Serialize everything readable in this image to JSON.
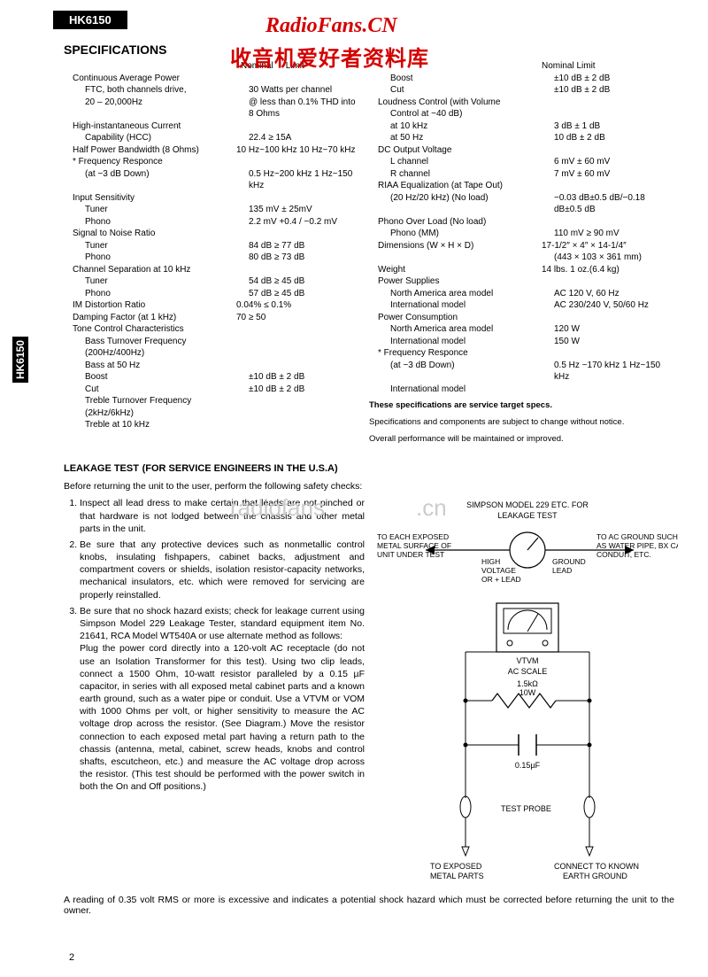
{
  "model": "HK6150",
  "side_model": "HK6150",
  "watermark": {
    "title": "RadioFans.CN",
    "subtitle": "收音机爱好者资料库"
  },
  "faint_watermarks": [
    "radiofans",
    ".cn"
  ],
  "section_specs": "SPECIFICATIONS",
  "spec_header": {
    "nom": "Nominal",
    "lim": "Limit"
  },
  "left_specs": [
    {
      "label": "Continuous Average Power",
      "val": ""
    },
    {
      "label": "FTC, both channels drive,",
      "val": "30 Watts per channel",
      "ind": true
    },
    {
      "label": "20 – 20,000Hz",
      "val": "@ less than 0.1% THD into",
      "ind": true
    },
    {
      "label": "",
      "val": "8 Ohms",
      "ind": true
    },
    {
      "label": "High-instantaneous Current",
      "val": ""
    },
    {
      "label": "Capability (HCC)",
      "val": "22.4 ≥ 15A",
      "ind": true
    },
    {
      "label": "Half Power Bandwidth (8 Ohms)",
      "val": "10 Hz~100 kHz 10 Hz~70 kHz"
    },
    {
      "label": "* Frequency Responce",
      "val": ""
    },
    {
      "label": "(at −3 dB Down)",
      "val": "0.5 Hz~200 kHz 1 Hz~150 kHz",
      "ind": true
    },
    {
      "label": "Input Sensitivity",
      "val": ""
    },
    {
      "label": "Tuner",
      "val": "135 mV ± 25mV",
      "ind": true
    },
    {
      "label": "Phono",
      "val": "2.2 mV +0.4 / −0.2 mV",
      "ind": true
    },
    {
      "label": "Signal to Noise Ratio",
      "val": ""
    },
    {
      "label": "Tuner",
      "val": "84 dB ≥ 77 dB",
      "ind": true
    },
    {
      "label": "Phono",
      "val": "80 dB ≥ 73 dB",
      "ind": true
    },
    {
      "label": "Channel Separation at 10 kHz",
      "val": ""
    },
    {
      "label": "Tuner",
      "val": "54 dB ≥ 45 dB",
      "ind": true
    },
    {
      "label": "Phono",
      "val": "57 dB ≥ 45 dB",
      "ind": true
    },
    {
      "label": "IM Distortion Ratio",
      "val": "0.04% ≤ 0.1%"
    },
    {
      "label": "Damping Factor (at 1 kHz)",
      "val": "70 ≥ 50"
    },
    {
      "label": "Tone Control Characteristics",
      "val": ""
    },
    {
      "label": "Bass Turnover Frequency",
      "val": "",
      "ind": true
    },
    {
      "label": "(200Hz/400Hz)",
      "val": "",
      "ind": true
    },
    {
      "label": "Bass at 50 Hz",
      "val": "",
      "ind": true
    },
    {
      "label": "Boost",
      "val": "±10 dB ± 2 dB",
      "ind": true
    },
    {
      "label": "Cut",
      "val": "±10 dB ± 2 dB",
      "ind": true
    },
    {
      "label": "Treble Turnover Frequency",
      "val": "",
      "ind": true
    },
    {
      "label": "(2kHz/6kHz)",
      "val": "",
      "ind": true
    },
    {
      "label": "Treble at 10 kHz",
      "val": "",
      "ind": true
    }
  ],
  "right_specs": [
    {
      "label": "",
      "val": "Nominal    Limit"
    },
    {
      "label": "Boost",
      "val": "±10 dB ± 2 dB",
      "ind": true
    },
    {
      "label": "Cut",
      "val": "±10 dB ± 2 dB",
      "ind": true
    },
    {
      "label": "Loudness Control (with Volume",
      "val": ""
    },
    {
      "label": "Control at −40 dB)",
      "val": "",
      "ind": true
    },
    {
      "label": "at 10 kHz",
      "val": "3 dB ± 1 dB",
      "ind": true
    },
    {
      "label": "at 50 Hz",
      "val": "10 dB ± 2 dB",
      "ind": true
    },
    {
      "label": "DC Output Voltage",
      "val": ""
    },
    {
      "label": "L channel",
      "val": "6 mV ± 60 mV",
      "ind": true
    },
    {
      "label": "R channel",
      "val": "7 mV ± 60 mV",
      "ind": true
    },
    {
      "label": "RIAA Equalization (at Tape Out)",
      "val": ""
    },
    {
      "label": "(20 Hz/20 kHz) (No load)",
      "val": "−0.03 dB±0.5 dB/−0.18 dB±0.5 dB",
      "ind": true
    },
    {
      "label": "Phono Over Load (No load)",
      "val": ""
    },
    {
      "label": "Phono (MM)",
      "val": "110 mV ≥ 90 mV",
      "ind": true
    },
    {
      "label": "Dimensions (W × H × D)",
      "val": "17-1/2″ × 4″ × 14-1/4″"
    },
    {
      "label": "",
      "val": "(443 × 103 × 361 mm)",
      "ind": true
    },
    {
      "label": "Weight",
      "val": "14 lbs. 1 oz.(6.4 kg)"
    },
    {
      "label": "Power Supplies",
      "val": ""
    },
    {
      "label": "North America area model",
      "val": "AC 120 V, 60 Hz",
      "ind": true
    },
    {
      "label": "International model",
      "val": "AC 230/240 V, 50/60 Hz",
      "ind": true
    },
    {
      "label": "Power Consumption",
      "val": ""
    },
    {
      "label": "North America area model",
      "val": "120 W",
      "ind": true
    },
    {
      "label": "International model",
      "val": "150 W",
      "ind": true
    },
    {
      "label": "",
      "val": ""
    },
    {
      "label": "* Frequency Responce",
      "val": ""
    },
    {
      "label": "(at −3 dB Down)",
      "val": "0.5 Hz ~170 kHz 1 Hz~150 kHz",
      "ind": true
    },
    {
      "label": "International model",
      "val": "",
      "ind": true
    }
  ],
  "spec_footnotes": [
    "These specifications are service target specs.",
    "Specifications and components are subject to change without notice.",
    "Overall performance will be maintained or improved."
  ],
  "leakage": {
    "title": "LEAKAGE TEST",
    "title_paren": "(FOR SERVICE ENGINEERS IN THE U.S.A)",
    "intro": "Before returning the unit to the user, perform the following safety checks:",
    "items": [
      "Inspect all lead dress to make certain that leads are not pinched or that hardware is not lodged between the chassis and other metal parts in the unit.",
      "Be sure that any protective devices such as nonmetallic control knobs, insulating fishpapers, cabinet backs, adjustment and compartment covers or shields, isolation resistor-capacity networks, mechanical insulators, etc. which were removed for servicing are properly reinstalled.",
      "Be sure that no shock hazard exists; check for leakage current using Simpson Model 229 Leakage Tester, standard equipment item No. 21641, RCA Model WT540A or use alternate method as follows:"
    ],
    "item3_detail": "Plug the power cord directly into a 120-volt AC receptacle (do not use an Isolation Transformer for this test). Using two clip leads, connect a 1500 Ohm, 10-watt resistor paralleled by a 0.15 µF capacitor, in series with all exposed metal cabinet parts and a known earth ground, such as a water pipe or conduit. Use a VTVM or VOM with 1000 Ohms per volt, or higher sensitivity to measure the AC voltage drop across the resistor. (See Diagram.) Move the resistor connection to each exposed metal part having a return path to the chassis (antenna, metal, cabinet, screw heads, knobs and control shafts, escutcheon, etc.) and measure the AC voltage drop across the resistor. (This test should be performed with the power switch in both the On and Off positions.)",
    "closing": "A reading of 0.35 volt RMS or more is excessive and indicates a potential shock hazard which must be corrected before returning the unit to the owner."
  },
  "diagram": {
    "topline1": "SIMPSON MODEL 229 ETC. FOR",
    "topline2": "LEAKAGE TEST",
    "left_label1": "TO EACH EXPOSED",
    "left_label2": "METAL SURFACE OF",
    "left_label3": "UNIT UNDER TEST",
    "mid_left1": "HIGH",
    "mid_left2": "VOLTAGE",
    "mid_left3": "OR + LEAD",
    "mid_right1": "GROUND",
    "mid_right2": "LEAD",
    "right_label1": "TO AC GROUND SUCH",
    "right_label2": "AS WATER PIPE, BX CABLE,",
    "right_label3": "CONDUIT, ETC.",
    "vtvm1": "VTVM",
    "vtvm2": "AC SCALE",
    "resistor1": "1.5kΩ",
    "resistor2": "10W",
    "cap": "0.15µF",
    "probe": "TEST PROBE",
    "bottom_left1": "TO EXPOSED",
    "bottom_left2": "METAL PARTS",
    "bottom_right1": "CONNECT TO KNOWN",
    "bottom_right2": "EARTH GROUND"
  },
  "page_number": "2",
  "colors": {
    "red": "#d40000",
    "black": "#000000"
  }
}
